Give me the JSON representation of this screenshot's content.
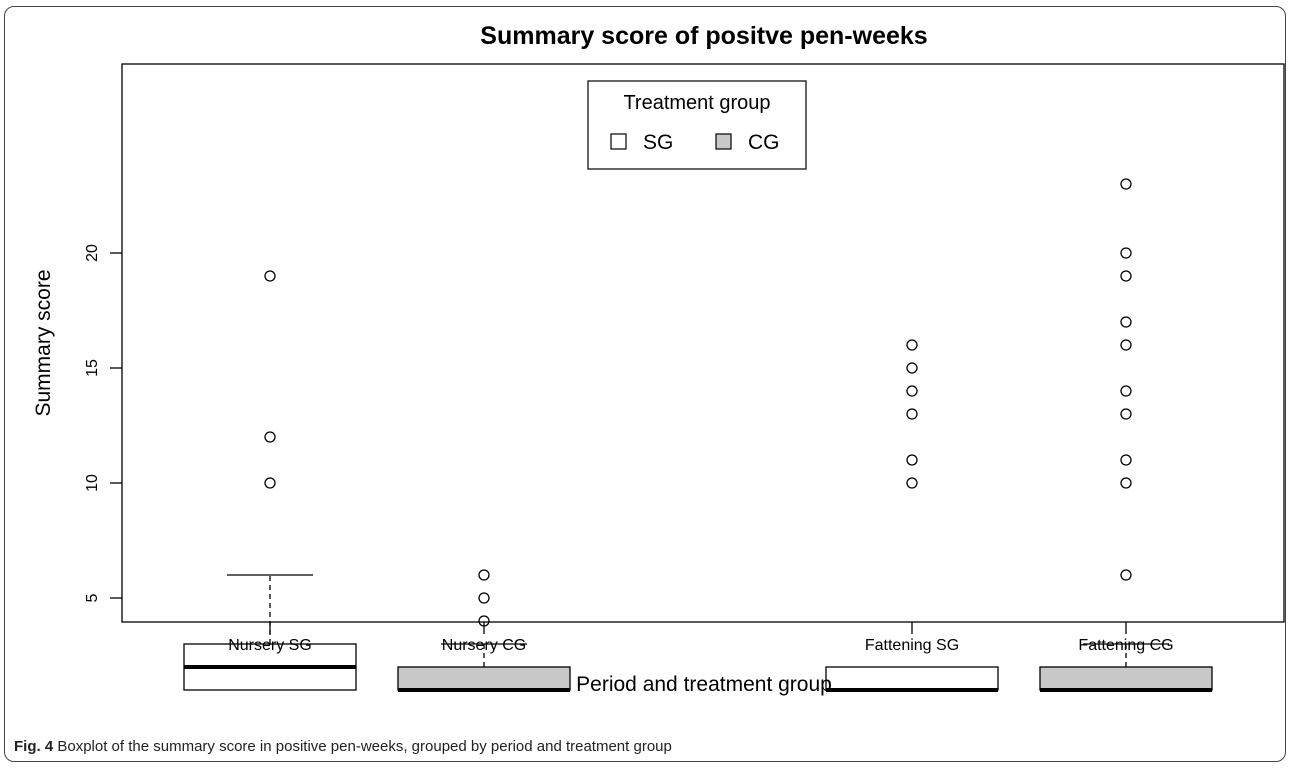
{
  "chart_data": {
    "type": "boxplot",
    "title": "Summary score of positve pen-weeks",
    "xlabel": "Period and treatment group",
    "ylabel": "Summary score",
    "ylim": [
      0,
      24
    ],
    "y_ticks": [
      5,
      10,
      15,
      20
    ],
    "legend": {
      "title": "Treatment group",
      "placement": "top-center",
      "entries": [
        {
          "label": "SG",
          "color": "#ffffff"
        },
        {
          "label": "CG",
          "color": "#c8c8c8"
        }
      ]
    },
    "groups": [
      {
        "label": "Nursery SG",
        "fill": "#ffffff",
        "whisker_low": 1,
        "q1": 1,
        "median": 2,
        "q3": 3,
        "whisker_high": 6,
        "outliers": [
          10,
          12,
          19
        ]
      },
      {
        "label": "Nursery CG",
        "fill": "#c8c8c8",
        "whisker_low": 1,
        "q1": 1,
        "median": 1,
        "q3": 2,
        "whisker_high": 3,
        "outliers": [
          4,
          5,
          6
        ]
      },
      {
        "label": "Fattening SG",
        "fill": "#ffffff",
        "whisker_low": 1,
        "q1": 1,
        "median": 1,
        "q3": 2,
        "whisker_high": 2,
        "outliers": [
          10,
          11,
          13,
          14,
          15,
          16
        ]
      },
      {
        "label": "Fattening CG",
        "fill": "#c8c8c8",
        "whisker_low": 1,
        "q1": 1,
        "median": 1,
        "q3": 2,
        "whisker_high": 3,
        "outliers": [
          6,
          10,
          11,
          13,
          14,
          16,
          17,
          19,
          20,
          23
        ]
      }
    ]
  },
  "caption": {
    "label": "Fig. 4",
    "text": "Boxplot of the summary score in positive pen-weeks, grouped by period and treatment group"
  }
}
